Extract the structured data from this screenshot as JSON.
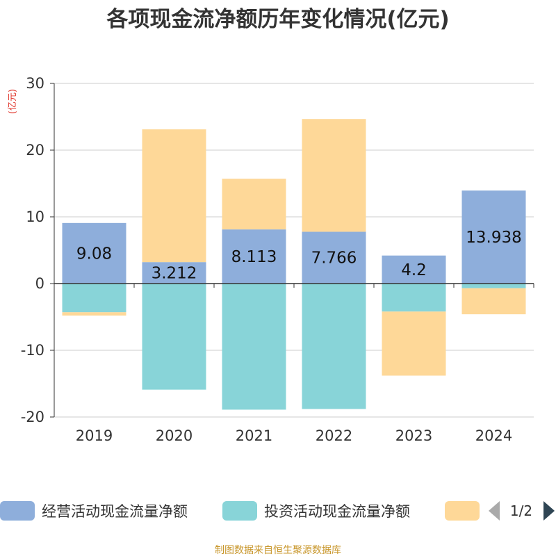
{
  "chart_data": {
    "type": "bar",
    "stacked": true,
    "title": "各项现金流净额历年变化情况(亿元)",
    "unit_label": "(亿元)",
    "categories": [
      "2019",
      "2020",
      "2021",
      "2022",
      "2023",
      "2024"
    ],
    "ylim": [
      -20,
      30
    ],
    "yticks": [
      -20,
      -10,
      0,
      10,
      20,
      30
    ],
    "grid": true,
    "legend_position": "bottom",
    "series": [
      {
        "name": "经营活动现金流量净额",
        "color": "#8eaedb",
        "values": [
          9.08,
          3.212,
          8.113,
          7.766,
          4.2,
          13.938
        ],
        "data_labels": [
          "9.08",
          "3.212",
          "8.113",
          "7.766",
          "4.2",
          "13.938"
        ]
      },
      {
        "name": "投资活动现金流量净额",
        "color": "#88d4d8",
        "values": [
          -4.3,
          -15.9,
          -18.9,
          -18.8,
          -4.2,
          -0.7
        ]
      },
      {
        "name": "",
        "color": "#fed898",
        "values": [
          -0.5,
          19.9,
          7.6,
          16.9,
          -9.6,
          -3.9
        ]
      }
    ],
    "legend_pager": "1/2",
    "source": "制图数据来自恒生聚源数据库"
  }
}
